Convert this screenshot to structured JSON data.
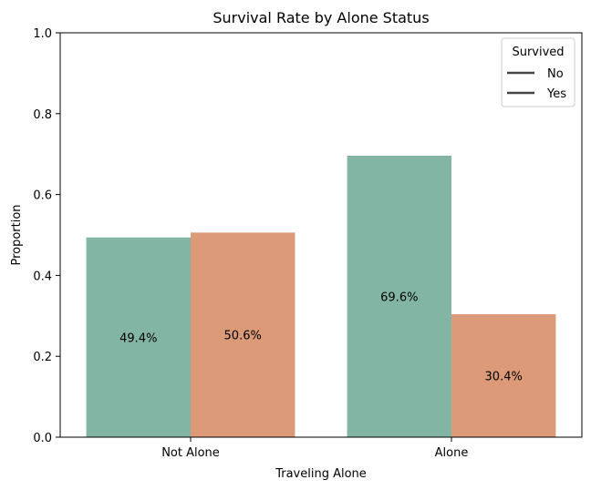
{
  "chart_data": {
    "type": "bar",
    "title": "Survival Rate by Alone Status",
    "xlabel": "Traveling Alone",
    "ylabel": "Proportion",
    "categories": [
      "Not Alone",
      "Alone"
    ],
    "series": [
      {
        "name": "No",
        "values": [
          0.494,
          0.696
        ],
        "labels": [
          "49.4%",
          "69.6%"
        ],
        "color": "#82b5a3"
      },
      {
        "name": "Yes",
        "values": [
          0.506,
          0.304
        ],
        "labels": [
          "50.6%",
          "30.4%"
        ],
        "color": "#dd9a79"
      }
    ],
    "ylim": [
      0,
      1.0
    ],
    "yticks": [
      0.0,
      0.2,
      0.4,
      0.6,
      0.8,
      1.0
    ],
    "ytick_labels": [
      "0.0",
      "0.2",
      "0.4",
      "0.6",
      "0.8",
      "1.0"
    ],
    "grid": false,
    "legend": {
      "title": "Survived",
      "placement": "top-right",
      "entries": [
        "No",
        "Yes"
      ],
      "line_color": "#444444"
    }
  }
}
